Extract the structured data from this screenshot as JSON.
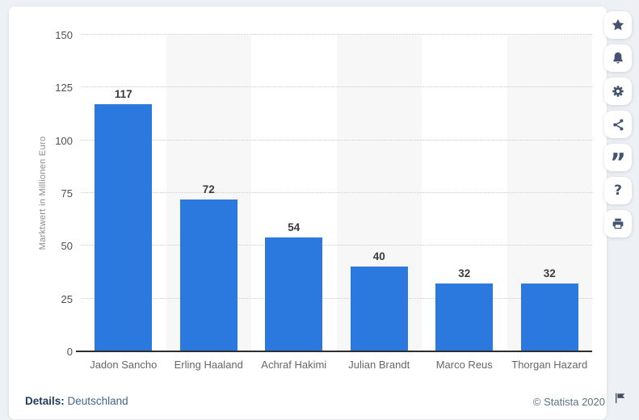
{
  "chart_data": {
    "type": "bar",
    "title": "",
    "categories": [
      "Jadon Sancho",
      "Erling Haaland",
      "Achraf Hakimi",
      "Julian Brandt",
      "Marco Reus",
      "Thorgan Hazard"
    ],
    "values": [
      117,
      72,
      54,
      40,
      32,
      32
    ],
    "xlabel": "",
    "ylabel": "Marktwert in Millionen Euro",
    "ylim": [
      0,
      150
    ],
    "yticks": [
      0,
      25,
      50,
      75,
      100,
      125,
      150
    ],
    "grid": "horizontal-dotted",
    "legend": "none",
    "bar_color": "#2b78de",
    "stripe_color": "#f7f7f7",
    "value_labels_shown": true
  },
  "footer": {
    "details_label": "Details:",
    "details_value": "Deutschland",
    "copyright": "© Statista 2020"
  },
  "toolbar": {
    "icons": [
      "favorite-star",
      "notifications-bell",
      "settings-gear",
      "share",
      "citation-quote",
      "help-question",
      "print"
    ],
    "help_glyph": "?",
    "citation_glyph": "”",
    "icon_color": "#44546e"
  },
  "misc": {
    "flag_icon": "report-flag"
  }
}
